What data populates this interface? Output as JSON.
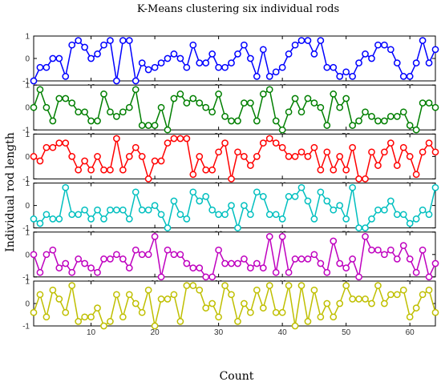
{
  "chart_data": {
    "type": "line",
    "title": "K-Means clustering six individual rods",
    "xlabel": "Count",
    "ylabel": "Individual rod length",
    "xlim": [
      1,
      64
    ],
    "ylim": [
      -1,
      1
    ],
    "x_ticks": [
      10,
      20,
      30,
      40,
      50,
      60
    ],
    "y_ticks": [
      1,
      0,
      -1
    ],
    "grid": false,
    "series": [
      {
        "color": "#0000ff",
        "values": [
          -1.0,
          -0.4,
          -0.4,
          0.0,
          0.0,
          -0.8,
          0.6,
          0.8,
          0.5,
          0.0,
          0.2,
          0.6,
          0.8,
          -1.0,
          0.8,
          0.8,
          -1.0,
          -0.2,
          -0.5,
          -0.4,
          -0.2,
          0.0,
          0.2,
          0.0,
          -0.4,
          0.6,
          -0.2,
          -0.2,
          0.2,
          -0.4,
          -0.4,
          -0.2,
          0.2,
          0.6,
          0.0,
          -0.8,
          0.4,
          -0.8,
          -0.6,
          -0.4,
          0.2,
          0.6,
          0.8,
          0.8,
          0.2,
          0.8,
          -0.4,
          -0.4,
          -0.8,
          -0.6,
          -0.8,
          -0.2,
          0.2,
          0.0,
          0.6,
          0.6,
          0.4,
          -0.2,
          -0.8,
          -0.8,
          -0.2,
          0.8,
          -0.2,
          0.4
        ]
      },
      {
        "color": "#007f00",
        "values": [
          0.0,
          0.8,
          0.0,
          -0.6,
          0.4,
          0.4,
          0.2,
          -0.2,
          -0.2,
          -0.6,
          -0.6,
          0.6,
          -0.2,
          -0.4,
          -0.2,
          0.0,
          0.8,
          -0.8,
          -0.8,
          -0.8,
          0.0,
          -1.0,
          0.4,
          0.6,
          0.2,
          0.4,
          0.2,
          0.0,
          -0.2,
          0.6,
          -0.4,
          -0.6,
          -0.6,
          0.2,
          0.2,
          -0.6,
          0.6,
          0.8,
          -0.6,
          -1.0,
          -0.2,
          0.4,
          -0.2,
          0.4,
          0.2,
          0.0,
          -0.8,
          0.6,
          0.0,
          0.4,
          -0.8,
          -0.6,
          -0.2,
          -0.4,
          -0.6,
          -0.6,
          -0.4,
          -0.4,
          -0.2,
          -0.8,
          -1.0,
          0.2,
          0.2,
          0.0
        ]
      },
      {
        "color": "#ff0000",
        "values": [
          0.0,
          -0.2,
          0.4,
          0.4,
          0.6,
          0.6,
          0.0,
          -0.6,
          -0.2,
          -0.6,
          0.0,
          -0.6,
          -0.6,
          0.8,
          -0.6,
          0.0,
          0.4,
          0.0,
          -1.0,
          -0.2,
          -0.2,
          0.6,
          0.8,
          0.8,
          0.8,
          -0.8,
          0.0,
          -0.6,
          -0.6,
          0.2,
          0.6,
          -1.0,
          0.2,
          0.0,
          -0.4,
          0.0,
          0.6,
          0.8,
          0.6,
          0.4,
          0.0,
          0.0,
          0.2,
          0.0,
          0.4,
          -0.6,
          0.2,
          -0.6,
          0.0,
          -0.6,
          0.4,
          -1.0,
          -1.0,
          0.2,
          -0.4,
          0.2,
          0.6,
          -0.4,
          0.4,
          0.0,
          -0.8,
          0.2,
          0.6,
          0.2
        ]
      },
      {
        "color": "#00bfbf",
        "values": [
          -0.6,
          -0.8,
          -0.4,
          -0.6,
          -0.6,
          0.8,
          -0.4,
          -0.4,
          -0.2,
          -0.6,
          -0.2,
          -0.6,
          -0.2,
          -0.2,
          -0.2,
          -0.6,
          0.6,
          -0.2,
          -0.2,
          0.0,
          -0.4,
          -1.0,
          0.2,
          -0.4,
          -0.6,
          0.6,
          0.2,
          0.4,
          -0.2,
          -0.4,
          -0.4,
          0.0,
          -1.0,
          0.0,
          -0.4,
          0.6,
          0.4,
          -0.4,
          -0.4,
          -0.6,
          0.4,
          0.4,
          0.8,
          0.2,
          -0.6,
          0.6,
          0.2,
          -0.2,
          0.0,
          -0.6,
          0.8,
          -1.0,
          -1.0,
          -0.6,
          -0.2,
          -0.2,
          0.2,
          -0.4,
          -0.4,
          -0.8,
          -0.6,
          -0.2,
          -0.4,
          0.8
        ]
      },
      {
        "color": "#bf00bf",
        "values": [
          0.0,
          -0.8,
          0.0,
          0.2,
          -0.6,
          -0.4,
          -0.8,
          -0.2,
          -0.4,
          -0.6,
          -0.8,
          -0.2,
          -0.2,
          0.0,
          -0.2,
          -0.6,
          0.2,
          0.0,
          0.0,
          0.8,
          -1.0,
          0.2,
          0.0,
          0.0,
          -0.4,
          -0.6,
          -0.6,
          -1.0,
          -1.0,
          0.2,
          -0.4,
          -0.4,
          -0.4,
          -0.2,
          -0.6,
          -0.4,
          -0.6,
          0.8,
          -0.8,
          0.8,
          -0.8,
          -0.2,
          -0.2,
          -0.2,
          0.0,
          -0.4,
          -0.8,
          0.6,
          -0.4,
          -0.6,
          -0.2,
          -1.0,
          0.8,
          0.2,
          0.2,
          0.0,
          0.2,
          -0.2,
          0.4,
          -0.2,
          -0.8,
          0.2,
          -1.0,
          -0.4
        ]
      },
      {
        "color": "#bfbf00",
        "values": [
          -0.4,
          0.4,
          -0.6,
          0.6,
          0.2,
          -0.4,
          0.8,
          -0.8,
          -0.6,
          -0.6,
          -0.2,
          -1.0,
          -0.8,
          0.4,
          -0.6,
          0.4,
          0.0,
          -0.4,
          0.6,
          -1.0,
          0.2,
          0.2,
          0.4,
          -0.8,
          0.8,
          0.8,
          0.6,
          -0.2,
          0.0,
          -0.6,
          0.8,
          0.4,
          -0.8,
          0.0,
          -0.4,
          0.6,
          -0.2,
          0.8,
          -0.4,
          -0.4,
          0.8,
          -1.0,
          0.8,
          -0.8,
          0.6,
          -0.6,
          0.0,
          -0.6,
          0.0,
          0.8,
          0.2,
          0.2,
          0.2,
          0.0,
          0.8,
          0.0,
          0.4,
          0.4,
          0.6,
          -0.6,
          -0.2,
          0.4,
          0.6,
          -0.4
        ]
      }
    ]
  }
}
